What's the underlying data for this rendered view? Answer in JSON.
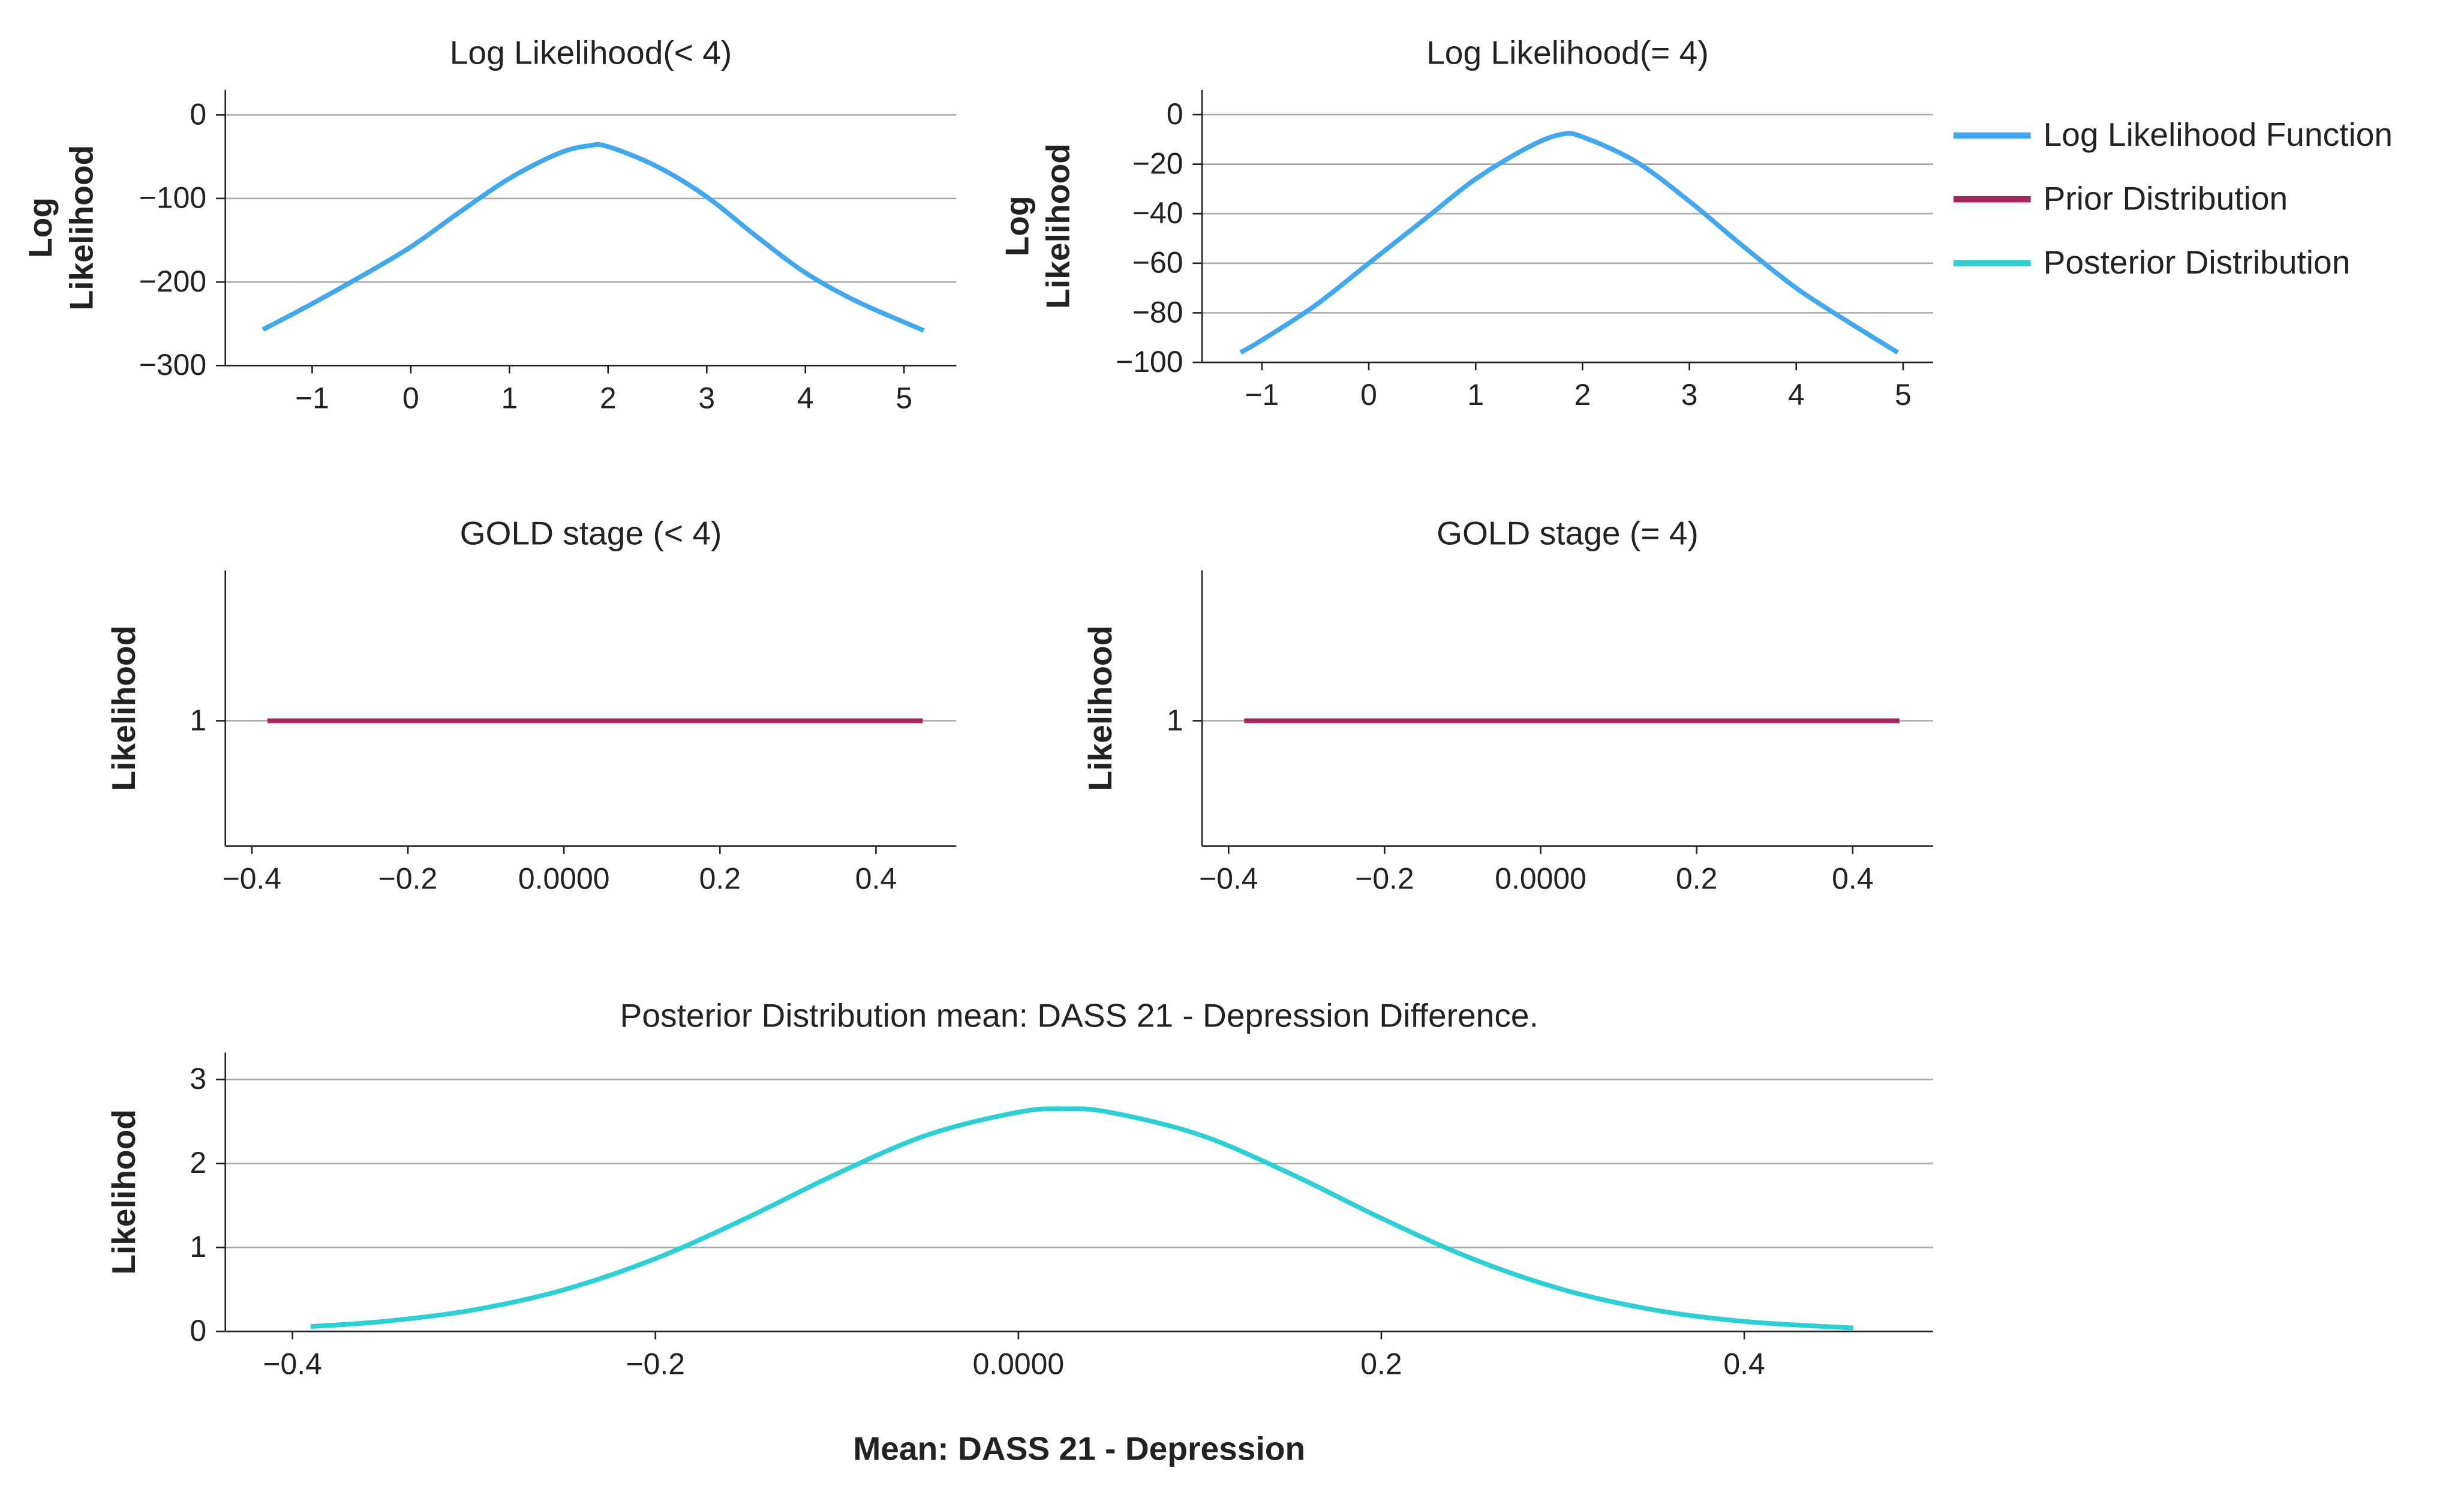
{
  "chart_data": [
    {
      "type": "line",
      "title": "Log Likelihood(< 4)",
      "ylabel": "Log Likelihood",
      "xlim": [
        -1.88,
        5.53
      ],
      "ylim": [
        -300,
        30
      ],
      "xticks": [
        {
          "value": -1,
          "label": "−1"
        },
        0,
        1,
        2,
        3,
        4,
        5
      ],
      "yticks": [
        {
          "value": -300,
          "label": "−300"
        },
        {
          "value": -200,
          "label": "−200"
        },
        {
          "value": -100,
          "label": "−100"
        },
        0
      ],
      "grid": true,
      "series": [
        {
          "name": "Log Likelihood Function",
          "color": "#41a8f0",
          "x": [
            -1.5,
            -1,
            -0.5,
            0,
            0.5,
            1,
            1.5,
            1.8,
            2,
            2.5,
            3,
            3.5,
            4,
            4.5,
            5,
            5.2
          ],
          "values": [
            -257,
            -226,
            -193,
            -158,
            -116,
            -76,
            -46,
            -37,
            -38,
            -62,
            -98,
            -145,
            -189,
            -222,
            -248,
            -258
          ]
        }
      ]
    },
    {
      "type": "line",
      "title": "Log Likelihood(= 4)",
      "ylabel": "Log Likelihood",
      "xlim": [
        -1.56,
        5.28
      ],
      "ylim": [
        -100,
        10
      ],
      "xticks": [
        {
          "value": -1,
          "label": "−1"
        },
        0,
        1,
        2,
        3,
        4,
        5
      ],
      "yticks": [
        {
          "value": -100,
          "label": "−100"
        },
        {
          "value": -80,
          "label": "−80"
        },
        {
          "value": -60,
          "label": "−60"
        },
        {
          "value": -40,
          "label": "−40"
        },
        {
          "value": -20,
          "label": "−20"
        },
        0
      ],
      "grid": true,
      "series": [
        {
          "color": "#41a8f0",
          "x": [
            -1.2,
            -1,
            -0.5,
            0,
            0.5,
            1,
            1.5,
            1.8,
            2,
            2.5,
            3,
            3.5,
            4,
            4.5,
            4.95
          ],
          "values": [
            -96,
            -91,
            -77,
            -60,
            -43,
            -26,
            -13,
            -8,
            -9,
            -19,
            -35,
            -53,
            -70,
            -84,
            -96
          ]
        }
      ]
    },
    {
      "type": "line",
      "title": "GOLD stage (< 4)",
      "ylabel": "Likelihood",
      "xlim": [
        -0.434,
        0.503
      ],
      "ylim": [
        0.5,
        1.6
      ],
      "xticks": [
        {
          "value": -0.4,
          "label": "−0.4"
        },
        {
          "value": -0.2,
          "label": "−0.2"
        },
        {
          "value": 0,
          "label": "0.0000"
        },
        0.2,
        0.4
      ],
      "yticks": [
        1
      ],
      "grid": true,
      "series": [
        {
          "name": "Prior Distribution",
          "color": "#a8245a",
          "x": [
            -0.38,
            0.46
          ],
          "values": [
            1,
            1
          ]
        }
      ]
    },
    {
      "type": "line",
      "title": "GOLD stage (= 4)",
      "ylabel": "Likelihood",
      "xlim": [
        -0.434,
        0.503
      ],
      "ylim": [
        0.5,
        1.6
      ],
      "xticks": [
        {
          "value": -0.4,
          "label": "−0.4"
        },
        {
          "value": -0.2,
          "label": "−0.2"
        },
        {
          "value": 0,
          "label": "0.0000"
        },
        0.2,
        0.4
      ],
      "yticks": [
        1
      ],
      "grid": true,
      "series": [
        {
          "color": "#a8245a",
          "x": [
            -0.38,
            0.46
          ],
          "values": [
            1,
            1
          ]
        }
      ]
    },
    {
      "type": "line",
      "title": "Posterior Distribution mean: DASS 21 - Depression Difference.",
      "ylabel": "Likelihood",
      "xlabel": "Mean: DASS 21 - Depression",
      "xlim": [
        -0.437,
        0.504
      ],
      "ylim": [
        0,
        3.32
      ],
      "xticks": [
        {
          "value": -0.4,
          "label": "−0.4"
        },
        {
          "value": -0.2,
          "label": "−0.2"
        },
        {
          "value": 0,
          "label": "0.0000"
        },
        0.2,
        0.4
      ],
      "yticks": [
        0,
        1,
        2,
        3
      ],
      "grid": true,
      "series": [
        {
          "name": "Posterior Distribution",
          "color": "#2ccfd4",
          "x": [
            -0.39,
            -0.35,
            -0.3,
            -0.25,
            -0.2,
            -0.15,
            -0.1,
            -0.05,
            0,
            0.025,
            0.05,
            0.1,
            0.15,
            0.2,
            0.25,
            0.3,
            0.35,
            0.4,
            0.46
          ],
          "values": [
            0.059,
            0.119,
            0.257,
            0.499,
            0.867,
            1.348,
            1.877,
            2.34,
            2.61,
            2.65,
            2.61,
            2.34,
            1.877,
            1.348,
            0.867,
            0.499,
            0.257,
            0.119,
            0.041
          ]
        }
      ]
    }
  ]
}
